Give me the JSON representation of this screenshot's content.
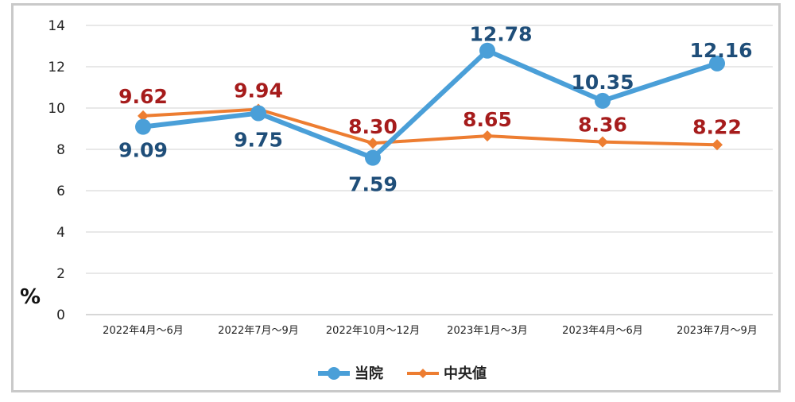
{
  "chart_data": {
    "type": "line",
    "ylabel": "%",
    "ylim": [
      0,
      14
    ],
    "yticks": [
      0,
      2,
      4,
      6,
      8,
      10,
      12,
      14
    ],
    "grid": true,
    "legend_position": "bottom",
    "categories": [
      "2022年4月～6月",
      "2022年7月～9月",
      "2022年10月～12月",
      "2023年1月～3月",
      "2023年4月～6月",
      "2023年7月～9月"
    ],
    "series": [
      {
        "name": "当院",
        "color": "#4a9fd8",
        "label_color": "#1f4e79",
        "values": [
          9.09,
          9.75,
          7.59,
          12.78,
          10.35,
          12.16
        ],
        "labels": [
          "9.09",
          "9.75",
          "7.59",
          "12.78",
          "10.35",
          "12.16"
        ]
      },
      {
        "name": "中央値",
        "color": "#ed7d31",
        "label_color": "#a61c1c",
        "values": [
          9.62,
          9.94,
          8.3,
          8.65,
          8.36,
          8.22
        ],
        "labels": [
          "9.62",
          "9.94",
          "8.30",
          "8.65",
          "8.36",
          "8.22"
        ]
      }
    ]
  }
}
